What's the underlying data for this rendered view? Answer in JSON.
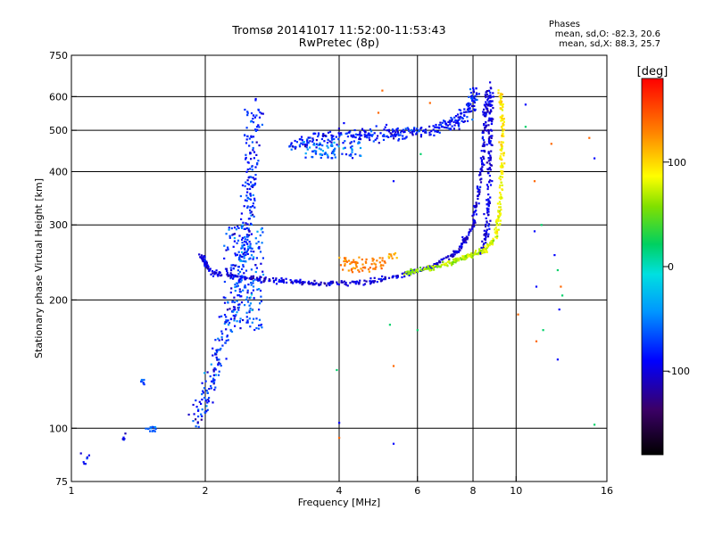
{
  "chart_data": {
    "type": "scatter",
    "title": "Tromsø 20141017 11:52:00-11:53:43",
    "subtitle": "RwPretec (8p)",
    "xlabel": "Frequency [MHz]",
    "ylabel": "Stationary phase Virtual Height [km]",
    "x_scale": "log",
    "y_scale": "log",
    "xlim": [
      1,
      16
    ],
    "ylim": [
      75,
      750
    ],
    "x_ticks": [
      1,
      2,
      4,
      6,
      8,
      10,
      16
    ],
    "y_ticks": [
      75,
      100,
      200,
      300,
      400,
      500,
      600,
      750
    ],
    "x_gridlines": [
      2,
      4,
      6,
      8,
      10
    ],
    "y_gridlines": [
      100,
      200,
      300,
      400,
      500,
      600
    ],
    "grid": true,
    "colorbar": {
      "label": "[deg]",
      "ticks": [
        100,
        0,
        -100
      ],
      "range": [
        -180,
        180
      ]
    },
    "stats": {
      "heading": "Phases",
      "o_trace": "mean, sd,O:  -82.3, 20.6",
      "x_trace": "mean, sd,X:  88.3, 25.7"
    },
    "point_groups": [
      {
        "feature": "low-frequency scatter",
        "f": [
          1.05,
          1.3
        ],
        "h": [
          80,
          95
        ],
        "phase": -85
      },
      {
        "feature": "spread near 1.5 MHz",
        "f": [
          1.45,
          1.55
        ],
        "h": [
          98,
          130
        ],
        "phase": -80
      },
      {
        "feature": "E/F1 spread trace",
        "f": [
          1.9,
          2.6
        ],
        "h": [
          100,
          600
        ],
        "phase": -85
      },
      {
        "feature": "O-mode F2 trace (lower)",
        "f": [
          2.0,
          8.6
        ],
        "h": [
          215,
          650
        ],
        "phase": -95
      },
      {
        "feature": "O-mode F2 cusp",
        "f": [
          8.3,
          8.8
        ],
        "h": [
          250,
          650
        ],
        "phase": -100
      },
      {
        "feature": "X-mode F2 trace",
        "f": [
          5.6,
          9.3
        ],
        "h": [
          230,
          620
        ],
        "phase": 80
      },
      {
        "feature": "upper spread echo band",
        "f": [
          3.1,
          7.0
        ],
        "h": [
          430,
          500
        ],
        "phase": -90
      },
      {
        "feature": "warm patch near 4.5 MHz",
        "f": [
          4.0,
          5.1
        ],
        "h": [
          232,
          252
        ],
        "phase": 130
      },
      {
        "feature": "scattered noise",
        "f": [
          4.0,
          15.0
        ],
        "h": [
          90,
          620
        ],
        "phase": "mixed"
      }
    ]
  }
}
